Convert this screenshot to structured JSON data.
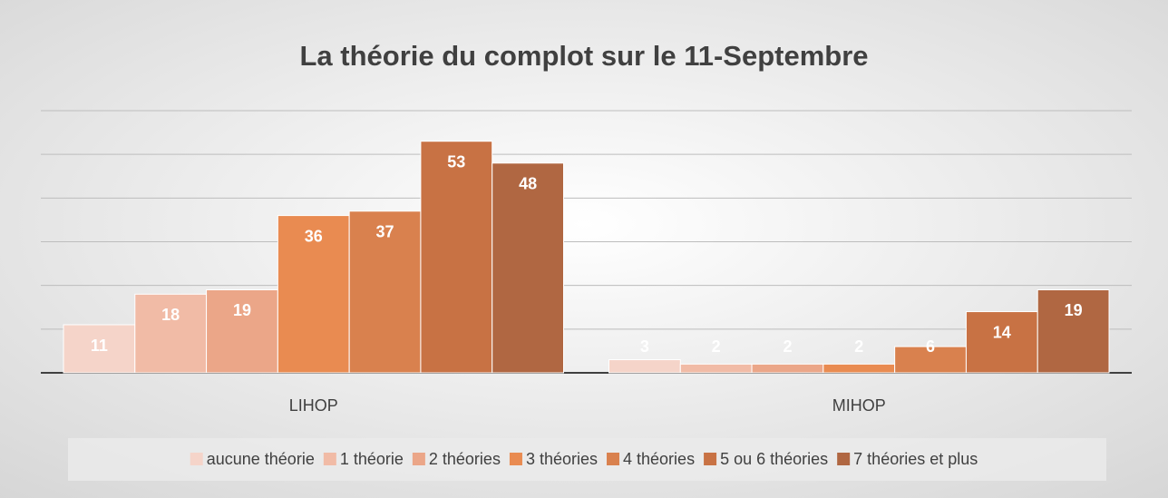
{
  "chart_data": {
    "type": "bar",
    "title": "La théorie du complot sur le 11-Septembre",
    "categories": [
      "LIHOP",
      "MIHOP"
    ],
    "series": [
      {
        "name": "aucune théorie",
        "color": "#f5d4c9",
        "values": [
          11,
          3
        ]
      },
      {
        "name": "1 théorie",
        "color": "#f1bba6",
        "values": [
          18,
          2
        ]
      },
      {
        "name": "2 théories",
        "color": "#eba688",
        "values": [
          19,
          2
        ]
      },
      {
        "name": "3 théories",
        "color": "#e98b51",
        "values": [
          36,
          2
        ]
      },
      {
        "name": "4 théories",
        "color": "#d9814e",
        "values": [
          37,
          6
        ]
      },
      {
        "name": "5 ou 6 théories",
        "color": "#c87244",
        "values": [
          53,
          14
        ]
      },
      {
        "name": "7 théories et plus",
        "color": "#b06742",
        "values": [
          48,
          19
        ]
      }
    ],
    "ylim": [
      0,
      60
    ],
    "yticks": [
      0,
      10,
      20,
      30,
      40,
      50,
      60
    ],
    "grid": true,
    "legend": "bottom"
  }
}
